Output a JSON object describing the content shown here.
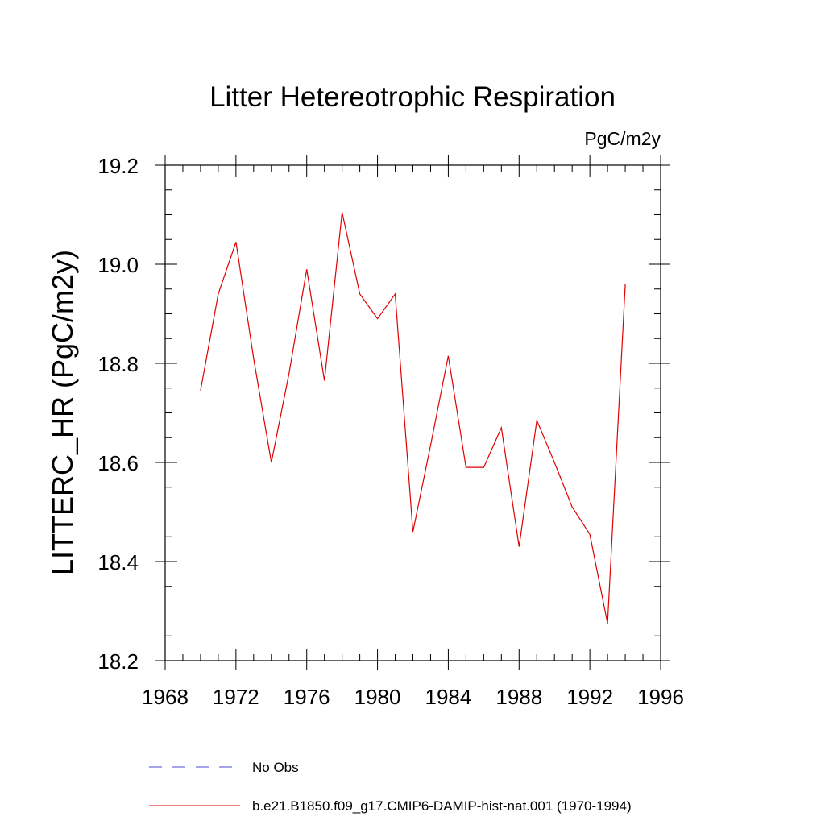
{
  "chart_data": {
    "type": "line",
    "title": "Litter Hetereotrophic Respiration",
    "units_label": "PgC/m2y",
    "ylabel": "LITTERC_HR  (PgC/m2y)",
    "xlabel": "",
    "xlim": [
      1968,
      1996
    ],
    "ylim": [
      18.2,
      19.2
    ],
    "x_ticks": [
      "1968",
      "1972",
      "1976",
      "1980",
      "1984",
      "1988",
      "1992",
      "1996"
    ],
    "y_ticks": [
      "18.2",
      "18.4",
      "18.6",
      "18.8",
      "19.0",
      "19.2"
    ],
    "grid": false,
    "legend_position": "bottom",
    "legend": [
      {
        "label": "No Obs",
        "color": "#4a4ad0",
        "style": "dashed"
      },
      {
        "label": "b.e21.B1850.f09_g17.CMIP6-DAMIP-hist-nat.001 (1970-1994)",
        "color": "#e00000",
        "style": "solid"
      }
    ],
    "series": [
      {
        "name": "b.e21.B1850.f09_g17.CMIP6-DAMIP-hist-nat.001 (1970-1994)",
        "color": "#e00000",
        "x": [
          1970,
          1971,
          1972,
          1973,
          1974,
          1975,
          1976,
          1977,
          1978,
          1979,
          1980,
          1981,
          1982,
          1983,
          1984,
          1985,
          1986,
          1987,
          1988,
          1989,
          1990,
          1991,
          1992,
          1993,
          1994
        ],
        "values": [
          18.745,
          18.94,
          19.045,
          18.81,
          18.6,
          18.78,
          18.99,
          18.765,
          19.105,
          18.94,
          18.89,
          18.94,
          18.46,
          18.635,
          18.815,
          18.59,
          18.59,
          18.67,
          18.43,
          18.685,
          18.6,
          18.51,
          18.455,
          18.275,
          18.96
        ]
      }
    ]
  }
}
